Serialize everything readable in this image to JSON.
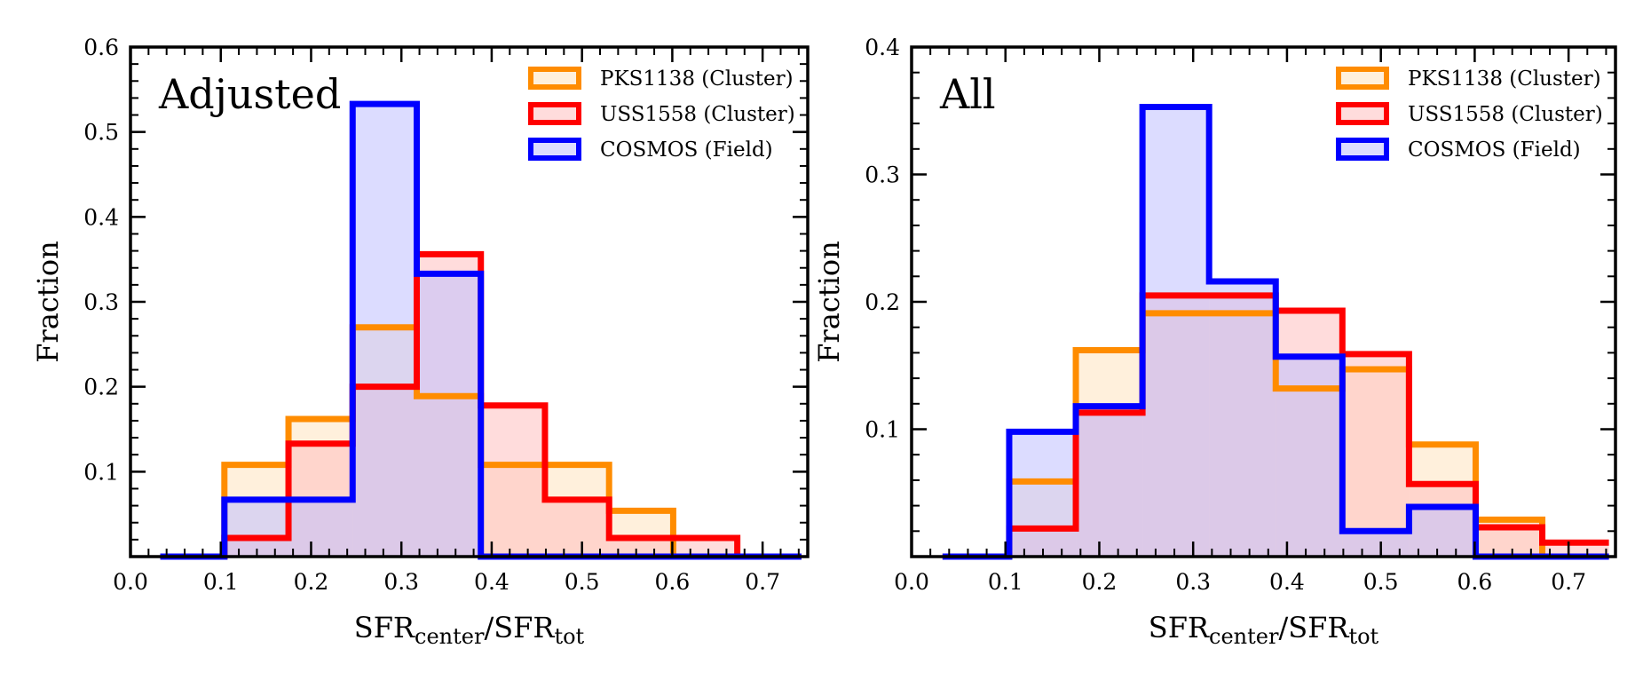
{
  "chart_data": [
    {
      "type": "bar",
      "panel_label": "Adjusted",
      "ylabel": "Fraction",
      "xlabel": {
        "base": "SFR",
        "sub1": "center",
        "sep": "/",
        "base2": "SFR",
        "sub2": "tot"
      },
      "xlim": [
        0.0,
        0.75
      ],
      "ylim": [
        0.0,
        0.6
      ],
      "xticks": [
        0.0,
        0.1,
        0.2,
        0.3,
        0.4,
        0.5,
        0.6,
        0.7
      ],
      "yticks": [
        0.1,
        0.2,
        0.3,
        0.4,
        0.5,
        0.6
      ],
      "bin_edges": [
        0.033,
        0.104,
        0.175,
        0.246,
        0.317,
        0.388,
        0.459,
        0.53,
        0.601,
        0.672,
        0.743
      ],
      "legend_position": "top-right",
      "series": [
        {
          "name": "PKS1138 (Cluster)",
          "color": "#ff8c00",
          "fill": "#ffe3c0",
          "values": [
            0.0,
            0.108,
            0.162,
            0.27,
            0.189,
            0.108,
            0.108,
            0.054,
            0.0,
            0.0
          ]
        },
        {
          "name": "USS1558 (Cluster)",
          "color": "#ff0000",
          "fill": "#ffc0c0",
          "values": [
            0.0,
            0.022,
            0.133,
            0.2,
            0.356,
            0.178,
            0.067,
            0.022,
            0.022,
            0.0
          ]
        },
        {
          "name": "COSMOS (Field)",
          "color": "#0000ff",
          "fill": "#c0c0ff",
          "values": [
            0.0,
            0.067,
            0.067,
            0.533,
            0.333,
            0.0,
            0.0,
            0.0,
            0.0,
            0.0
          ]
        }
      ]
    },
    {
      "type": "bar",
      "panel_label": "All",
      "ylabel": "Fraction",
      "xlabel": {
        "base": "SFR",
        "sub1": "center",
        "sep": "/",
        "base2": "SFR",
        "sub2": "tot"
      },
      "xlim": [
        0.0,
        0.75
      ],
      "ylim": [
        0.0,
        0.4
      ],
      "xticks": [
        0.0,
        0.1,
        0.2,
        0.3,
        0.4,
        0.5,
        0.6,
        0.7
      ],
      "yticks": [
        0.1,
        0.2,
        0.3,
        0.4
      ],
      "bin_edges": [
        0.033,
        0.104,
        0.175,
        0.246,
        0.317,
        0.388,
        0.459,
        0.53,
        0.601,
        0.672,
        0.743
      ],
      "legend_position": "top-right",
      "series": [
        {
          "name": "PKS1138 (Cluster)",
          "color": "#ff8c00",
          "fill": "#ffe3c0",
          "values": [
            0.0,
            0.059,
            0.162,
            0.191,
            0.191,
            0.132,
            0.147,
            0.088,
            0.029,
            0.0
          ]
        },
        {
          "name": "USS1558 (Cluster)",
          "color": "#ff0000",
          "fill": "#ffc0c0",
          "values": [
            0.0,
            0.022,
            0.113,
            0.205,
            0.205,
            0.193,
            0.159,
            0.057,
            0.023,
            0.011
          ]
        },
        {
          "name": "COSMOS (Field)",
          "color": "#0000ff",
          "fill": "#c0c0ff",
          "values": [
            0.0,
            0.098,
            0.118,
            0.353,
            0.216,
            0.157,
            0.02,
            0.039,
            0.0,
            0.0
          ]
        }
      ]
    }
  ]
}
